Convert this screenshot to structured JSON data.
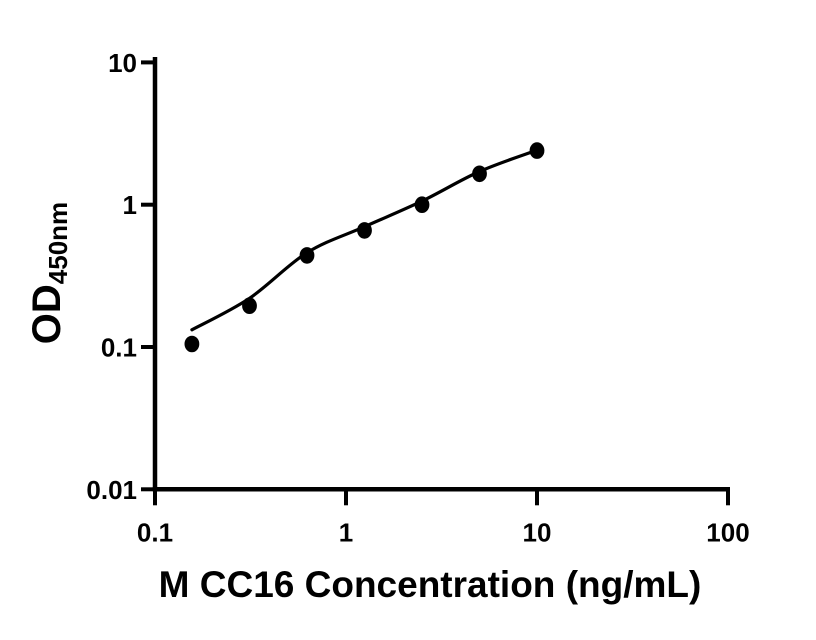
{
  "figure": {
    "background_color": "#ffffff",
    "foreground_color": "#000000"
  },
  "chart_data": {
    "type": "scatter",
    "title": "",
    "xlabel": "M CC16 Concentration (ng/mL)",
    "ylabel_main": "OD",
    "ylabel_sub": "450nm",
    "x_scale": "log10",
    "y_scale": "log10",
    "xlim": [
      0.1,
      100
    ],
    "ylim": [
      0.01,
      10
    ],
    "x_ticks": [
      0.1,
      1,
      10,
      100
    ],
    "x_tick_labels": [
      "0.1",
      "1",
      "10",
      "100"
    ],
    "y_ticks": [
      0.01,
      0.1,
      1,
      10
    ],
    "y_tick_labels": [
      "0.01",
      "0.1",
      "1",
      "10"
    ],
    "grid": false,
    "legend": "none",
    "series": [
      {
        "name": "standard-data-points",
        "kind": "scatter",
        "marker": "filled-circle",
        "color": "#000000",
        "x": [
          0.156,
          0.3125,
          0.625,
          1.25,
          2.5,
          5,
          10
        ],
        "y": [
          0.105,
          0.195,
          0.44,
          0.66,
          1.0,
          1.65,
          2.4
        ]
      },
      {
        "name": "fitted-standard-curve",
        "kind": "line",
        "color": "#000000",
        "x": [
          0.156,
          0.3125,
          0.625,
          1.25,
          2.5,
          5,
          10
        ],
        "y": [
          0.132,
          0.22,
          0.46,
          0.7,
          1.06,
          1.71,
          2.42
        ]
      }
    ]
  }
}
